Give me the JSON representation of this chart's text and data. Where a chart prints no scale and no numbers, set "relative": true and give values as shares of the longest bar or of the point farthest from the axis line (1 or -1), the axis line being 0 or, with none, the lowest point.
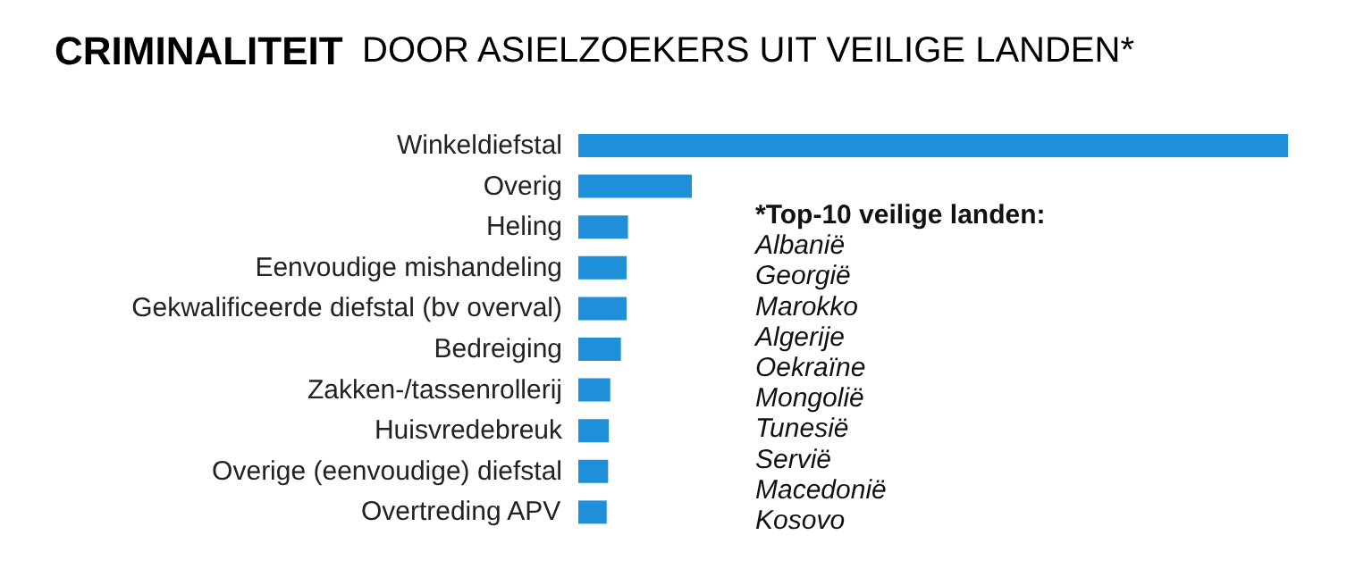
{
  "chart_data": {
    "type": "bar",
    "orientation": "horizontal",
    "relative": true,
    "title": "CRIMINALITEIT DOOR ASIELZOEKERS UIT VEILIGE LANDEN*",
    "categories": [
      "Winkeldiefstal",
      "Overig",
      "Heling",
      "Eenvoudige mishandeling",
      "Gekwalificeerde diefstal (bv overval)",
      "Bedreiging",
      "Zakken-/tassenrollerij",
      "Huisvredebreuk",
      "Overige (eenvoudige) diefstal",
      "Overtreding APV"
    ],
    "values": [
      1,
      0.16,
      0.07,
      0.068,
      0.068,
      0.06,
      0.045,
      0.043,
      0.042,
      0.04
    ],
    "color": "#1e8fd8",
    "annotations": [
      "*Top-10 veilige landen:\nAlbanië\nGeorgië\nMarokko\nAlgerije\nOekraïne\nMongolië\nTunesië\nServië\nMacedonië\nKosovo"
    ]
  }
}
